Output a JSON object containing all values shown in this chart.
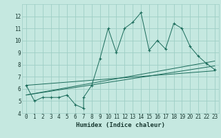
{
  "xlabel": "Humidex (Indice chaleur)",
  "ylabel": "",
  "bg_color": "#c5e8e0",
  "grid_color": "#9ecec5",
  "line_color": "#1a6b5a",
  "xlim": [
    -0.5,
    23.5
  ],
  "ylim": [
    4,
    13
  ],
  "yticks": [
    4,
    5,
    6,
    7,
    8,
    9,
    10,
    11,
    12
  ],
  "xticks": [
    0,
    1,
    2,
    3,
    4,
    5,
    6,
    7,
    8,
    9,
    10,
    11,
    12,
    13,
    14,
    15,
    16,
    17,
    18,
    19,
    20,
    21,
    22,
    23
  ],
  "series": [
    [
      0,
      6.3
    ],
    [
      1,
      5.0
    ],
    [
      2,
      5.3
    ],
    [
      3,
      5.3
    ],
    [
      4,
      5.3
    ],
    [
      5,
      5.5
    ],
    [
      6,
      4.7
    ],
    [
      7,
      4.4
    ],
    [
      7,
      5.3
    ],
    [
      8,
      6.3
    ],
    [
      9,
      8.5
    ],
    [
      10,
      11.0
    ],
    [
      11,
      9.0
    ],
    [
      12,
      11.0
    ],
    [
      13,
      11.5
    ],
    [
      14,
      12.3
    ],
    [
      15,
      9.2
    ],
    [
      16,
      10.0
    ],
    [
      17,
      9.3
    ],
    [
      18,
      11.4
    ],
    [
      19,
      11.0
    ],
    [
      20,
      9.5
    ],
    [
      21,
      8.7
    ],
    [
      22,
      8.1
    ],
    [
      23,
      7.6
    ]
  ],
  "trend_lines": [
    [
      [
        0,
        6.3
      ],
      [
        23,
        7.5
      ]
    ],
    [
      [
        0,
        5.5
      ],
      [
        23,
        7.9
      ]
    ],
    [
      [
        0,
        5.5
      ],
      [
        23,
        8.3
      ]
    ]
  ],
  "xlabel_fontsize": 6.5,
  "tick_fontsize": 5.5
}
